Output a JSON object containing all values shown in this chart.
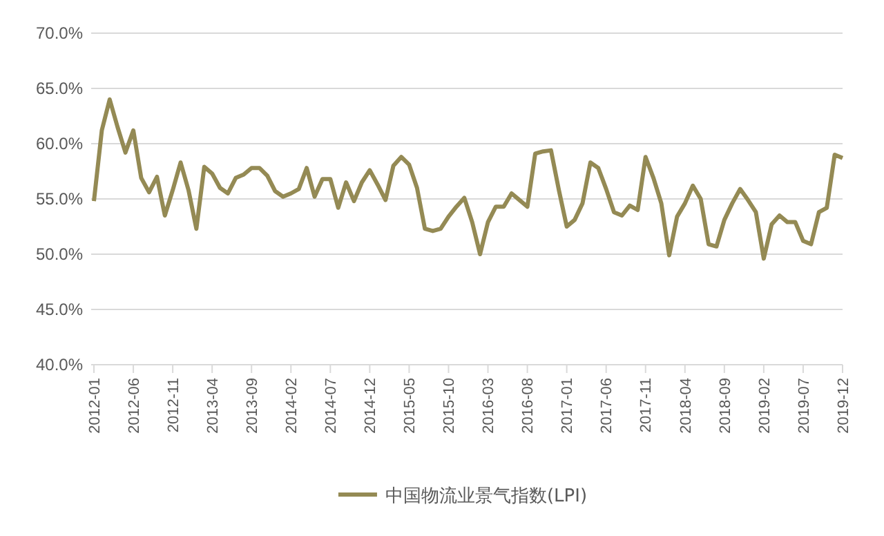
{
  "chart_data": {
    "type": "line",
    "categories": [
      "2012-01",
      null,
      null,
      null,
      null,
      "2012-06",
      null,
      null,
      null,
      null,
      "2012-11",
      null,
      null,
      null,
      null,
      "2013-04",
      null,
      null,
      null,
      null,
      "2013-09",
      null,
      null,
      null,
      null,
      "2014-02",
      null,
      null,
      null,
      null,
      "2014-07",
      null,
      null,
      null,
      null,
      "2014-12",
      null,
      null,
      null,
      null,
      "2015-05",
      null,
      null,
      null,
      null,
      "2015-10",
      null,
      null,
      null,
      null,
      "2016-03",
      null,
      null,
      null,
      null,
      "2016-08",
      null,
      null,
      null,
      null,
      "2017-01",
      null,
      null,
      null,
      null,
      "2017-06",
      null,
      null,
      null,
      null,
      "2017-11",
      null,
      null,
      null,
      null,
      "2018-04",
      null,
      null,
      null,
      null,
      "2018-09",
      null,
      null,
      null,
      null,
      "2019-02",
      null,
      null,
      null,
      null,
      "2019-07",
      null,
      null,
      null,
      null,
      "2019-12"
    ],
    "series": [
      {
        "name": "中国物流业景气指数(LPI)",
        "color": "#948a54",
        "values": [
          54.8,
          61.2,
          64.0,
          61.5,
          59.2,
          61.2,
          56.9,
          55.6,
          57.0,
          53.5,
          55.8,
          58.3,
          55.8,
          52.3,
          57.9,
          57.3,
          56.0,
          55.5,
          56.9,
          57.2,
          57.8,
          57.8,
          57.1,
          55.7,
          55.2,
          55.5,
          55.9,
          57.8,
          55.2,
          56.8,
          56.8,
          54.2,
          56.5,
          54.8,
          56.5,
          57.6,
          56.3,
          54.9,
          58.0,
          58.8,
          58.1,
          56.0,
          52.3,
          52.1,
          52.3,
          53.4,
          54.3,
          55.1,
          52.9,
          50.0,
          52.9,
          54.3,
          54.3,
          55.5,
          54.9,
          54.3,
          59.1,
          59.3,
          59.4,
          55.8,
          52.5,
          53.1,
          54.6,
          58.3,
          57.8,
          55.9,
          53.8,
          53.5,
          54.4,
          54.0,
          58.8,
          56.9,
          54.6,
          49.9,
          53.4,
          54.6,
          56.2,
          55.0,
          50.9,
          50.7,
          53.1,
          54.6,
          55.9,
          54.9,
          53.8,
          49.6,
          52.7,
          53.5,
          52.9,
          52.9,
          51.2,
          50.9,
          53.8,
          54.2,
          59.0,
          58.7
        ]
      }
    ],
    "ylim": [
      40,
      70
    ],
    "yticks": [
      {
        "value": 40,
        "label": "40.0%"
      },
      {
        "value": 45,
        "label": "45.0%"
      },
      {
        "value": 50,
        "label": "50.0%"
      },
      {
        "value": 55,
        "label": "55.0%"
      },
      {
        "value": 60,
        "label": "60.0%"
      },
      {
        "value": 65,
        "label": "65.0%"
      },
      {
        "value": 70,
        "label": "70.0%"
      }
    ],
    "grid": "y",
    "legend": "bottom",
    "marker": "none",
    "line_style": "solid"
  }
}
